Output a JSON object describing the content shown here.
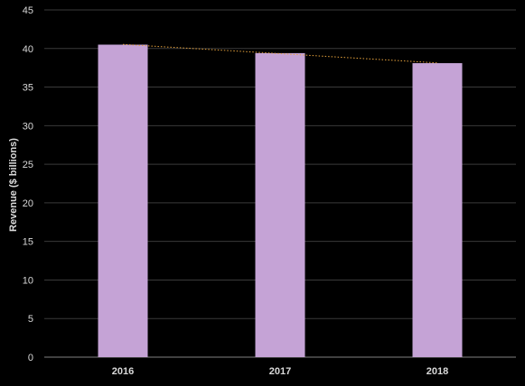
{
  "chart_data": {
    "type": "bar",
    "categories": [
      "2016",
      "2017",
      "2018"
    ],
    "values": [
      40.5,
      39.4,
      38.1
    ],
    "title": "",
    "xlabel": "",
    "ylabel": "Revenue ($ billions)",
    "ylim": [
      0,
      45
    ],
    "yticks": [
      0,
      5,
      10,
      15,
      20,
      25,
      30,
      35,
      40,
      45
    ],
    "grid": true,
    "trendline": "linear, dotted",
    "colors": {
      "bar": "#c5a3d6",
      "trendline": "#e6a23c",
      "grid": "#3a3a3a",
      "background": "#000000",
      "text": "#d9d9d9"
    }
  }
}
